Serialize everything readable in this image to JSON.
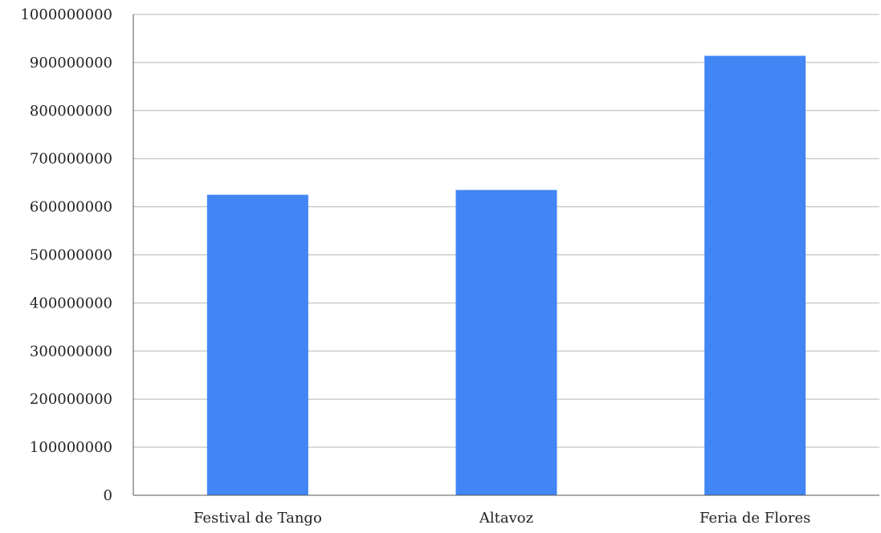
{
  "chart_data": {
    "type": "bar",
    "categories": [
      "Festival de Tango",
      "Altavoz",
      "Feria de Flores"
    ],
    "series": [
      {
        "values": [
          625000000,
          635000000,
          914000000
        ],
        "color": "#4285f4"
      }
    ],
    "ylim": [
      0,
      1000000000
    ],
    "yticks": [
      0,
      100000000,
      200000000,
      300000000,
      400000000,
      500000000,
      600000000,
      700000000,
      800000000,
      900000000,
      1000000000
    ],
    "grid": true,
    "legend": "none",
    "title": "",
    "xlabel": "",
    "ylabel": ""
  },
  "colors": {
    "bar": "#4285f4",
    "gridline": "#b7b7b7",
    "axis": "#555555",
    "text": "#222222"
  }
}
